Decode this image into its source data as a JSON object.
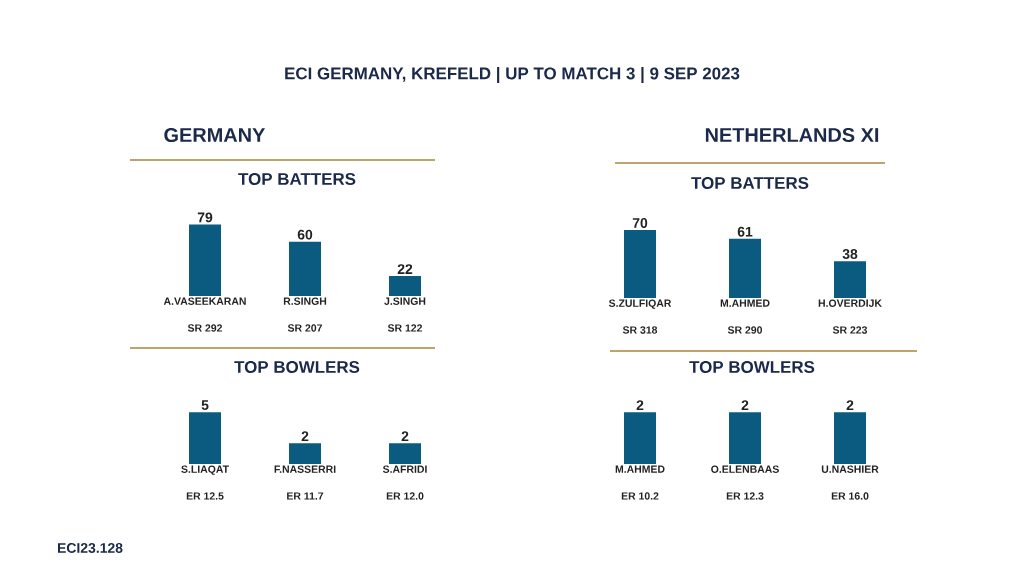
{
  "chart_data": [
    {
      "type": "bar",
      "title": "GERMANY",
      "subtitle": "TOP BATTERS",
      "categories": [
        "A.VASEEKARAN",
        "R.SINGH",
        "J.SINGH"
      ],
      "values": [
        79,
        60,
        22
      ],
      "color": "#0b5a80",
      "data_labels": true,
      "tick_labels": "x",
      "annotations": [
        "SR 292",
        "SR 207",
        "SR 122"
      ]
    },
    {
      "type": "bar",
      "title": "TOP BOWLERS",
      "categories": [
        "S.LIAQAT",
        "F.NASSERRI",
        "S.AFRIDI"
      ],
      "values": [
        5,
        2,
        2
      ],
      "color": "#0b5a80",
      "data_labels": true,
      "tick_labels": "x",
      "annotations": [
        "ER 12.5",
        "ER 11.7",
        "ER 12.0"
      ]
    },
    {
      "type": "bar",
      "title": "NETHERLANDS XI",
      "subtitle": "TOP BATTERS",
      "categories": [
        "S.ZULFIQAR",
        "M.AHMED",
        "H.OVERDIJK"
      ],
      "values": [
        70,
        61,
        38
      ],
      "color": "#0b5a80",
      "data_labels": true,
      "tick_labels": "x",
      "annotations": [
        "SR 318",
        "SR 290",
        "SR 223"
      ]
    },
    {
      "type": "bar",
      "title": "TOP BOWLERS",
      "categories": [
        "M.AHMED",
        "O.ELENBAAS",
        "U.NASHIER"
      ],
      "values": [
        2,
        2,
        2
      ],
      "color": "#0b5a80",
      "data_labels": true,
      "tick_labels": "x",
      "annotations": [
        "ER 10.2",
        "ER 12.3",
        "ER 16.0"
      ]
    },
    {
      "type": "other",
      "title": "ECI GERMANY, KREFELD | UP TO MATCH 3 | 9 SEP 2023",
      "annotations": [
        "ECI23.128"
      ]
    }
  ]
}
